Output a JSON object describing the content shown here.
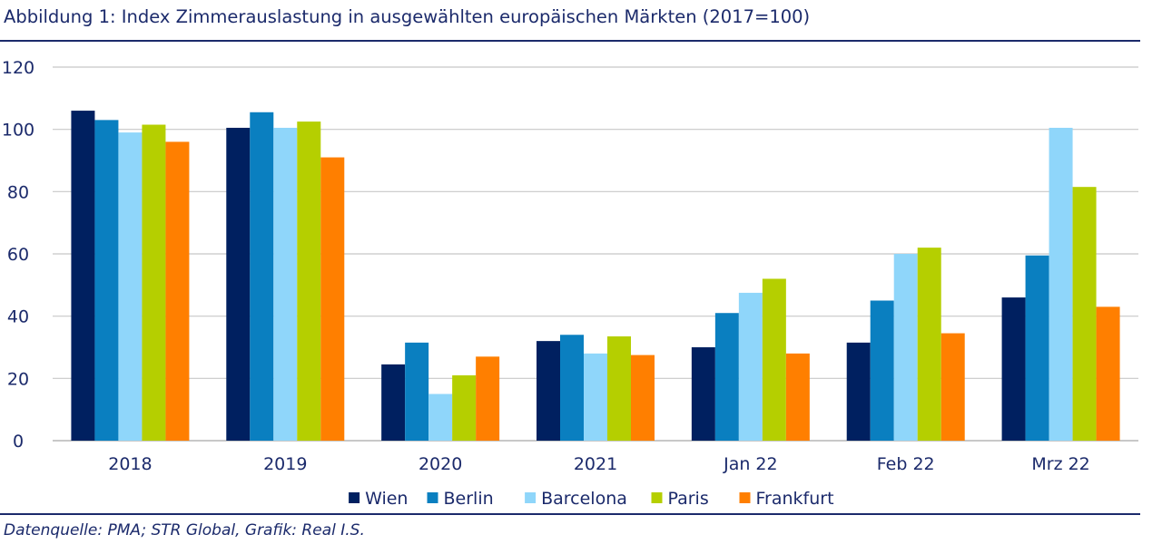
{
  "title": "Abbildung 1: Index Zimmerauslastung in ausgewählten europäischen Märkten (2017=100)",
  "source": "Datenquelle: PMA; STR Global, Grafik: Real I.S.",
  "chart_data": {
    "type": "bar",
    "categories": [
      "2018",
      "2019",
      "2020",
      "2021",
      "Jan 22",
      "Feb 22",
      "Mrz 22"
    ],
    "ylim": [
      0,
      120
    ],
    "yticks": [
      0,
      20,
      40,
      60,
      80,
      100,
      120
    ],
    "grid": true,
    "legend_position": "bottom",
    "series": [
      {
        "name": "Wien",
        "color": "#002060",
        "values": [
          106,
          100.5,
          24.5,
          32,
          30,
          31.5,
          46
        ]
      },
      {
        "name": "Berlin",
        "color": "#0a7fc0",
        "values": [
          103,
          105.5,
          31.5,
          34,
          41,
          45,
          59.5
        ]
      },
      {
        "name": "Barcelona",
        "color": "#8fd6fa",
        "values": [
          99,
          100.5,
          15,
          28,
          47.5,
          60,
          100.5
        ]
      },
      {
        "name": "Paris",
        "color": "#b5cf00",
        "values": [
          101.5,
          102.5,
          21,
          33.5,
          52,
          62,
          81.5
        ]
      },
      {
        "name": "Frankfurt",
        "color": "#ff7f00",
        "values": [
          96,
          91,
          27,
          27.5,
          28,
          34.5,
          43
        ]
      }
    ]
  }
}
